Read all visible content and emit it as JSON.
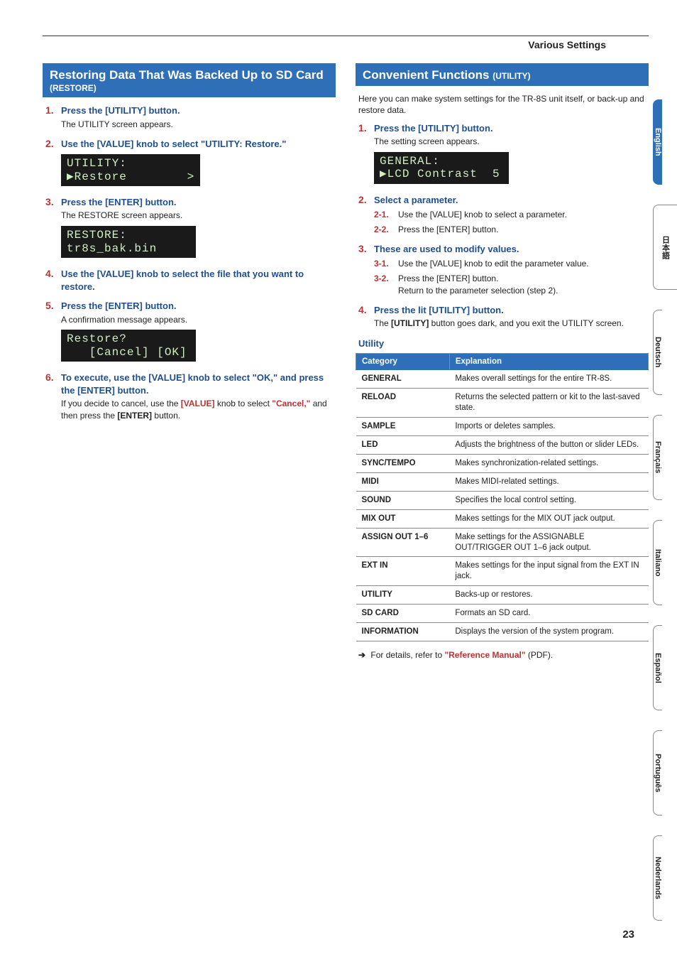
{
  "breadcrumb": "Various Settings",
  "page_number": "23",
  "left": {
    "header_main": "Restoring Data That Was Backed Up to SD Card",
    "header_sub": "(RESTORE)",
    "steps": [
      {
        "title": "Press the [UTILITY] button.",
        "body": "The UTILITY screen appears."
      },
      {
        "title": "Use the [VALUE] knob to select \"UTILITY: Restore.\"",
        "lcd": [
          "UTILITY:",
          "▶Restore        >"
        ]
      },
      {
        "title": "Press the [ENTER] button.",
        "body": "The RESTORE screen appears.",
        "lcd": [
          "RESTORE:",
          "tr8s_bak.bin"
        ]
      },
      {
        "title": "Use the [VALUE] knob to select the file that you want to restore."
      },
      {
        "title": "Press the [ENTER] button.",
        "body": "A confirmation message appears.",
        "lcd": [
          "Restore?",
          "   [Cancel] [OK]"
        ]
      },
      {
        "title": "To execute, use the [VALUE] knob to select \"OK,\" and press the [ENTER] button.",
        "body_html": "If you decide to cancel, use the <span class='hl'>[VALUE]</span> knob to select <span class='hl'>\"Cancel,\"</span> and then press the <span class='bl'>[ENTER]</span> button."
      }
    ]
  },
  "right": {
    "header_main": "Convenient Functions",
    "header_sub": "(UTILITY)",
    "intro": "Here you can make system settings for the TR-8S unit itself, or back-up and restore data.",
    "steps": [
      {
        "title": "Press the [UTILITY] button.",
        "body": "The setting screen appears.",
        "lcd": [
          "GENERAL:",
          "▶LCD Contrast  5"
        ]
      },
      {
        "title": "Select a parameter.",
        "subs": [
          {
            "n": "2-1.",
            "html": "Use the <span class='bl'>[VALUE]</span> knob to select a parameter."
          },
          {
            "n": "2-2.",
            "html": "Press the <span class='bl'>[ENTER]</span> button."
          }
        ]
      },
      {
        "title": "These are used to modify values.",
        "subs": [
          {
            "n": "3-1.",
            "html": "Use the <span class='bl'>[VALUE]</span> knob to edit the parameter value."
          },
          {
            "n": "3-2.",
            "html": "Press the <span class='bl'>[ENTER]</span> button.<br>Return to the parameter selection (step 2)."
          }
        ]
      },
      {
        "title": "Press the lit [UTILITY] button.",
        "body_html": "The <span class='bl'>[UTILITY]</span> button goes dark, and you exit the UTILITY screen."
      }
    ],
    "utility_label": "Utility",
    "table": {
      "columns": [
        "Category",
        "Explanation"
      ],
      "rows": [
        [
          "GENERAL",
          "Makes overall settings for the entire TR-8S."
        ],
        [
          "RELOAD",
          "Returns the selected pattern or kit to the last-saved state."
        ],
        [
          "SAMPLE",
          "Imports or deletes samples."
        ],
        [
          "LED",
          "Adjusts the brightness of the button or slider LEDs."
        ],
        [
          "SYNC/TEMPO",
          "Makes synchronization-related settings."
        ],
        [
          "MIDI",
          "Makes MIDI-related settings."
        ],
        [
          "SOUND",
          "Specifies the local control setting."
        ],
        [
          "MIX OUT",
          "Makes settings for the MIX OUT jack output."
        ],
        [
          "ASSIGN OUT 1–6",
          "Make settings for the ASSIGNABLE OUT/TRIGGER OUT 1–6 jack output."
        ],
        [
          "EXT IN",
          "Makes settings for the input signal from the EXT IN jack."
        ],
        [
          "UTILITY",
          "Backs-up or restores."
        ],
        [
          "SD CARD",
          "Formats an SD card."
        ],
        [
          "INFORMATION",
          "Displays the version of the system program."
        ]
      ]
    },
    "footnote_prefix": "For details, refer to ",
    "footnote_ref": "\"Reference Manual\"",
    "footnote_suffix": " (PDF)."
  },
  "langs": [
    {
      "label": "English",
      "active": true
    },
    {
      "label": "日本語",
      "active": false,
      "jp": true
    },
    {
      "label": "Deutsch",
      "active": false
    },
    {
      "label": "Français",
      "active": false
    },
    {
      "label": "Italiano",
      "active": false
    },
    {
      "label": "Español",
      "active": false
    },
    {
      "label": "Português",
      "active": false
    },
    {
      "label": "Nederlands",
      "active": false
    }
  ]
}
